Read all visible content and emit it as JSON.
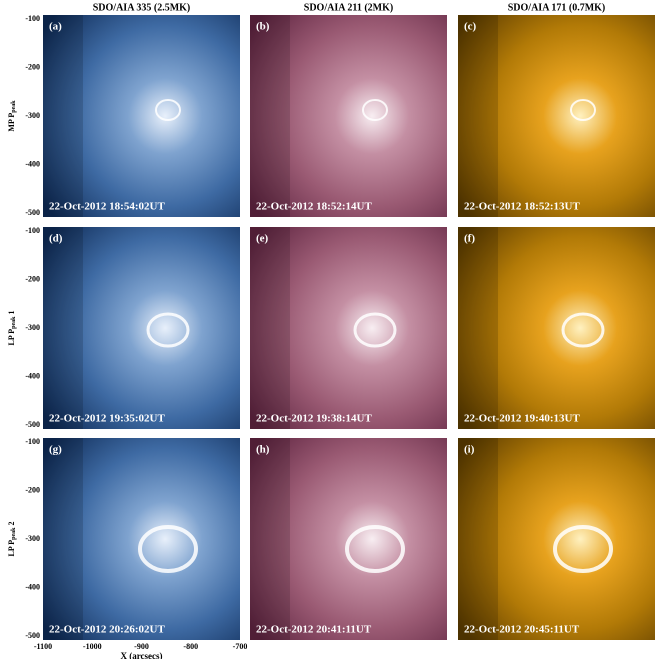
{
  "figure": {
    "columns": [
      "SDO/AIA 335 (2.5MK)",
      "SDO/AIA 211 (2MK)",
      "SDO/AIA 171 (0.7MK)"
    ],
    "rows": [
      {
        "prefix": "MP P",
        "sub": "peak"
      },
      {
        "prefix": "LP P",
        "sub": "peak",
        "suffix": " 1"
      },
      {
        "prefix": "LP P",
        "sub": "peak",
        "suffix": " 2"
      }
    ],
    "panels": [
      {
        "label": "(a)",
        "time": "22-Oct-2012 18:54:02UT"
      },
      {
        "label": "(b)",
        "time": "22-Oct-2012 18:52:14UT"
      },
      {
        "label": "(c)",
        "time": "22-Oct-2012 18:52:13UT"
      },
      {
        "label": "(d)",
        "time": "22-Oct-2012 19:35:02UT"
      },
      {
        "label": "(e)",
        "time": "22-Oct-2012 19:38:14UT"
      },
      {
        "label": "(f)",
        "time": "22-Oct-2012 19:40:13UT"
      },
      {
        "label": "(g)",
        "time": "22-Oct-2012 20:26:02UT"
      },
      {
        "label": "(h)",
        "time": "22-Oct-2012 20:41:11UT"
      },
      {
        "label": "(i)",
        "time": "22-Oct-2012 20:45:11UT"
      }
    ],
    "yticks": [
      "-100",
      "-200",
      "-300",
      "-400",
      "-500"
    ],
    "xticks": [
      "-1100",
      "-1000",
      "-900",
      "-800",
      "-700"
    ],
    "xlabel": "X (arcsecs)"
  }
}
